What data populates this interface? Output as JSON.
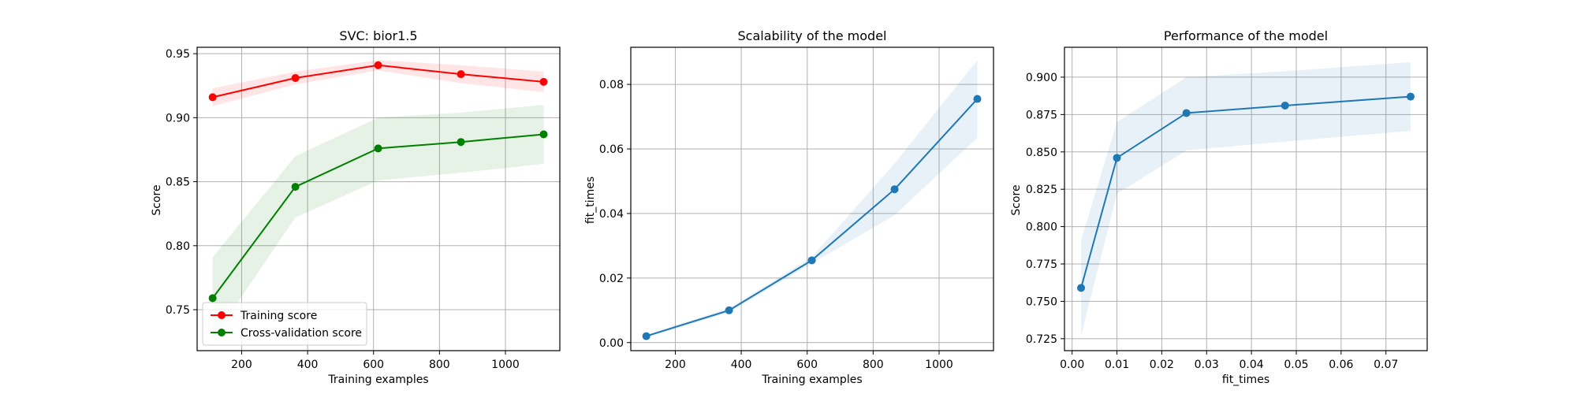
{
  "chart_data": [
    {
      "type": "line",
      "title": "SVC: bior1.5",
      "xlabel": "Training examples",
      "ylabel": "Score",
      "xlim": [
        65,
        1165
      ],
      "ylim": [
        0.718,
        0.955
      ],
      "xticks": [
        200,
        400,
        600,
        800,
        1000
      ],
      "xtick_labels": [
        "200",
        "400",
        "600",
        "800",
        "1000"
      ],
      "yticks": [
        0.75,
        0.8,
        0.85,
        0.9,
        0.95
      ],
      "ytick_labels": [
        "0.75",
        "0.80",
        "0.85",
        "0.90",
        "0.95"
      ],
      "grid": true,
      "legend": "lower-left",
      "series": [
        {
          "name": "Training score",
          "color": "#ff0000",
          "x": [
            112,
            363,
            614,
            865,
            1116
          ],
          "values": [
            0.916,
            0.931,
            0.941,
            0.934,
            0.928
          ],
          "band_low": [
            0.909,
            0.926,
            0.937,
            0.927,
            0.92
          ],
          "band_high": [
            0.923,
            0.936,
            0.945,
            0.941,
            0.936
          ]
        },
        {
          "name": "Cross-validation score",
          "color": "#008000",
          "x": [
            112,
            363,
            614,
            865,
            1116
          ],
          "values": [
            0.759,
            0.846,
            0.876,
            0.881,
            0.887
          ],
          "band_low": [
            0.727,
            0.822,
            0.851,
            0.857,
            0.864
          ],
          "band_high": [
            0.791,
            0.87,
            0.9,
            0.904,
            0.91
          ]
        }
      ]
    },
    {
      "type": "line",
      "title": "Scalability of the model",
      "xlabel": "Training examples",
      "ylabel": "fit_times",
      "xlim": [
        65,
        1165
      ],
      "ylim": [
        -0.0025,
        0.0915
      ],
      "xticks": [
        200,
        400,
        600,
        800,
        1000
      ],
      "xtick_labels": [
        "200",
        "400",
        "600",
        "800",
        "1000"
      ],
      "yticks": [
        0.0,
        0.02,
        0.04,
        0.06,
        0.08
      ],
      "ytick_labels": [
        "0.00",
        "0.02",
        "0.04",
        "0.06",
        "0.08"
      ],
      "grid": true,
      "series": [
        {
          "color": "#1f77b4",
          "x": [
            112,
            363,
            614,
            865,
            1116
          ],
          "values": [
            0.002,
            0.01,
            0.0255,
            0.0475,
            0.0755
          ],
          "band_low": [
            0.0015,
            0.0093,
            0.0245,
            0.0395,
            0.0635
          ],
          "band_high": [
            0.0025,
            0.0107,
            0.0265,
            0.0555,
            0.0875
          ]
        }
      ]
    },
    {
      "type": "line",
      "title": "Performance of the model",
      "xlabel": "fit_times",
      "ylabel": "Score",
      "xlim": [
        -0.0017,
        0.0792
      ],
      "ylim": [
        0.717,
        0.92
      ],
      "xticks": [
        0.0,
        0.01,
        0.02,
        0.03,
        0.04,
        0.05,
        0.06,
        0.07
      ],
      "xtick_labels": [
        "0.00",
        "0.01",
        "0.02",
        "0.03",
        "0.04",
        "0.05",
        "0.06",
        "0.07"
      ],
      "yticks": [
        0.725,
        0.75,
        0.775,
        0.8,
        0.825,
        0.85,
        0.875,
        0.9
      ],
      "ytick_labels": [
        "0.725",
        "0.750",
        "0.775",
        "0.800",
        "0.825",
        "0.850",
        "0.875",
        "0.900"
      ],
      "grid": true,
      "series": [
        {
          "color": "#1f77b4",
          "x": [
            0.002,
            0.01,
            0.0255,
            0.0475,
            0.0755
          ],
          "values": [
            0.759,
            0.846,
            0.876,
            0.881,
            0.887
          ],
          "band_low": [
            0.727,
            0.822,
            0.851,
            0.857,
            0.864
          ],
          "band_high": [
            0.791,
            0.87,
            0.9,
            0.904,
            0.91
          ]
        }
      ]
    }
  ]
}
